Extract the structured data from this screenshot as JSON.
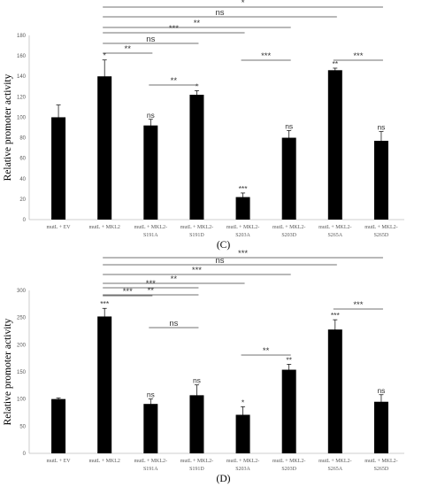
{
  "chart_data": [
    {
      "type": "bar",
      "panel_label": "(C)",
      "ylabel": "Relative promoter activity",
      "ylim": [
        0,
        180
      ],
      "yticks": [
        "0",
        "20",
        "40",
        "60",
        "80",
        "100",
        "120",
        "140",
        "160",
        "180"
      ],
      "grid": false,
      "categories": [
        [
          "mutL + EV"
        ],
        [
          "mutL + MKL2"
        ],
        [
          "mutL + MKL2-",
          "S191A"
        ],
        [
          "mutL + MKL2-",
          "S191D"
        ],
        [
          "mutL + MKL2-",
          "S203A"
        ],
        [
          "mutL + MKL2-",
          "S203D"
        ],
        [
          "mutL + MKL2-",
          "S265A"
        ],
        [
          "mutL + MKL2-",
          "S265D"
        ]
      ],
      "series": [
        {
          "values": [
            100,
            140,
            92,
            122,
            22,
            80,
            146,
            77
          ],
          "errors": [
            12,
            16,
            6,
            4,
            4,
            7,
            2,
            9
          ]
        }
      ],
      "bar_labels": [
        "",
        "*",
        "ns",
        "*",
        "***",
        "ns",
        "**",
        "ns"
      ],
      "comparisons": [
        {
          "from": 1,
          "to": 7,
          "label": "*"
        },
        {
          "from": 1,
          "to": 6,
          "label": "ns"
        },
        {
          "from": 1,
          "to": 5,
          "label": "**"
        },
        {
          "from": 1,
          "to": 4,
          "label": "***"
        },
        {
          "from": 1,
          "to": 3,
          "label": "ns"
        },
        {
          "from": 1,
          "to": 2,
          "label": "**"
        },
        {
          "from": 2,
          "to": 3,
          "label": "**"
        },
        {
          "from": 4,
          "to": 5,
          "label": "***"
        },
        {
          "from": 6,
          "to": 7,
          "label": "***"
        }
      ]
    },
    {
      "type": "bar",
      "panel_label": "(D)",
      "ylabel": "Relative promoter activity",
      "ylim": [
        0,
        300
      ],
      "yticks": [
        "0",
        "50",
        "100",
        "150",
        "200",
        "250",
        "300"
      ],
      "grid": false,
      "categories": [
        [
          "mutL + EV"
        ],
        [
          "mutL + MKL2"
        ],
        [
          "mutL + MKL2-",
          "S191A"
        ],
        [
          "mutL + MKL2-",
          "S191D"
        ],
        [
          "mutL + MKL2-",
          "S203A"
        ],
        [
          "mutL + MKL2-",
          "S203D"
        ],
        [
          "mutL + MKL2-",
          "S265A"
        ],
        [
          "mutL + MKL2-",
          "S265D"
        ]
      ],
      "series": [
        {
          "values": [
            100,
            252,
            91,
            107,
            71,
            154,
            228,
            95
          ],
          "errors": [
            2,
            15,
            9,
            19,
            15,
            10,
            18,
            13
          ]
        }
      ],
      "bar_labels": [
        "",
        "***",
        "ns",
        "ns",
        "*",
        "**",
        "***",
        "ns"
      ],
      "comparisons": [
        {
          "from": 1,
          "to": 7,
          "label": "***"
        },
        {
          "from": 1,
          "to": 6,
          "label": "ns"
        },
        {
          "from": 1,
          "to": 5,
          "label": "***"
        },
        {
          "from": 1,
          "to": 4,
          "label": "**"
        },
        {
          "from": 1,
          "to": 3,
          "label": "***"
        },
        {
          "from": 1,
          "to": 3,
          "label": "**"
        },
        {
          "from": 1,
          "to": 2,
          "label": "***"
        },
        {
          "from": 2,
          "to": 3,
          "label": "ns"
        },
        {
          "from": 4,
          "to": 5,
          "label": "**"
        },
        {
          "from": 6,
          "to": 7,
          "label": "***"
        }
      ]
    }
  ]
}
